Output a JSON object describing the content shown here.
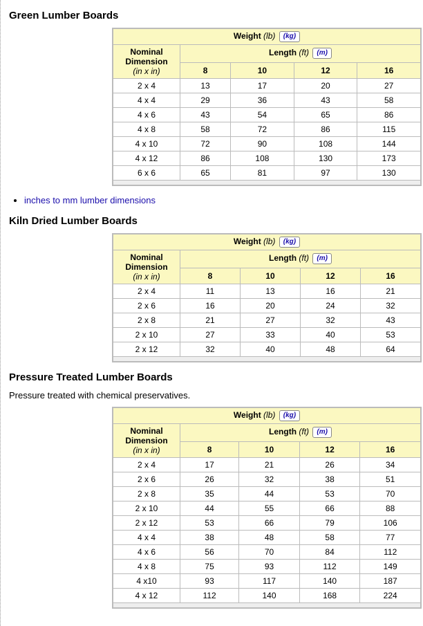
{
  "common": {
    "weight_label": "Weight",
    "weight_unit_primary": "(lb)",
    "weight_unit_toggle": "(kg)",
    "length_label": "Length",
    "length_unit_primary": "(ft)",
    "length_unit_toggle": "(m)",
    "dim_label_l1": "Nominal",
    "dim_label_l2": "Dimension",
    "dim_unit": "(in x in)",
    "length_cols": [
      "8",
      "10",
      "12",
      "16"
    ]
  },
  "link_text": "inches to mm lumber dimensions",
  "sections": {
    "green": {
      "title": "Green Lumber Boards",
      "rows": [
        {
          "dim": "2 x 4",
          "v": [
            "13",
            "17",
            "20",
            "27"
          ]
        },
        {
          "dim": "4 x 4",
          "v": [
            "29",
            "36",
            "43",
            "58"
          ]
        },
        {
          "dim": "4 x 6",
          "v": [
            "43",
            "54",
            "65",
            "86"
          ]
        },
        {
          "dim": "4 x 8",
          "v": [
            "58",
            "72",
            "86",
            "115"
          ]
        },
        {
          "dim": "4 x 10",
          "v": [
            "72",
            "90",
            "108",
            "144"
          ]
        },
        {
          "dim": "4 x 12",
          "v": [
            "86",
            "108",
            "130",
            "173"
          ]
        },
        {
          "dim": "6 x 6",
          "v": [
            "65",
            "81",
            "97",
            "130"
          ]
        }
      ]
    },
    "kiln": {
      "title": "Kiln Dried Lumber Boards",
      "rows": [
        {
          "dim": "2 x 4",
          "v": [
            "11",
            "13",
            "16",
            "21"
          ]
        },
        {
          "dim": "2 x 6",
          "v": [
            "16",
            "20",
            "24",
            "32"
          ]
        },
        {
          "dim": "2 x 8",
          "v": [
            "21",
            "27",
            "32",
            "43"
          ]
        },
        {
          "dim": "2 x 10",
          "v": [
            "27",
            "33",
            "40",
            "53"
          ]
        },
        {
          "dim": "2 x 12",
          "v": [
            "32",
            "40",
            "48",
            "64"
          ]
        }
      ]
    },
    "pressure": {
      "title": "Pressure Treated Lumber Boards",
      "subtitle": "Pressure treated with chemical preservatives.",
      "rows": [
        {
          "dim": "2 x 4",
          "v": [
            "17",
            "21",
            "26",
            "34"
          ]
        },
        {
          "dim": "2 x 6",
          "v": [
            "26",
            "32",
            "38",
            "51"
          ]
        },
        {
          "dim": "2 x 8",
          "v": [
            "35",
            "44",
            "53",
            "70"
          ]
        },
        {
          "dim": "2 x 10",
          "v": [
            "44",
            "55",
            "66",
            "88"
          ]
        },
        {
          "dim": "2 x 12",
          "v": [
            "53",
            "66",
            "79",
            "106"
          ]
        },
        {
          "dim": "4 x 4",
          "v": [
            "38",
            "48",
            "58",
            "77"
          ]
        },
        {
          "dim": "4 x 6",
          "v": [
            "56",
            "70",
            "84",
            "112"
          ]
        },
        {
          "dim": "4 x 8",
          "v": [
            "75",
            "93",
            "112",
            "149"
          ]
        },
        {
          "dim": "4 x10",
          "v": [
            "93",
            "117",
            "140",
            "187"
          ]
        },
        {
          "dim": "4 x 12",
          "v": [
            "112",
            "140",
            "168",
            "224"
          ]
        }
      ]
    }
  },
  "style": {
    "header_bg": "#fbf8c1",
    "border_color": "#bbbbbb",
    "link_color": "#1a0dab"
  }
}
